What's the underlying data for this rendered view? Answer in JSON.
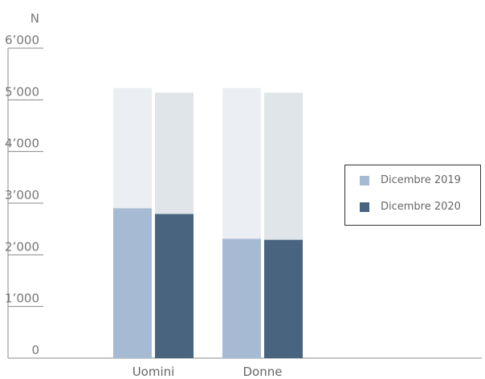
{
  "chart_data": {
    "type": "bar",
    "title": "",
    "xlabel": "",
    "ylabel": "N",
    "ylim": [
      0,
      6000
    ],
    "yticks": [
      0,
      1000,
      2000,
      3000,
      4000,
      5000,
      6000
    ],
    "ytick_labels": [
      "0",
      "1’000",
      "2’000",
      "3’000",
      "4’000",
      "5’000",
      "6’000"
    ],
    "categories": [
      "Uomini",
      "Donne"
    ],
    "series": [
      {
        "name": "Dicembre 2019",
        "values": [
          2900,
          2310
        ],
        "color": "#a6bbd3",
        "background_color": "#ebeff3",
        "background_values": [
          5230,
          5230
        ]
      },
      {
        "name": "Dicembre 2020",
        "values": [
          2790,
          2290
        ],
        "color": "#48647f",
        "background_color": "#dfe5e8",
        "background_values": [
          5140,
          5140
        ]
      }
    ],
    "grid": false,
    "legend_position": "right"
  }
}
